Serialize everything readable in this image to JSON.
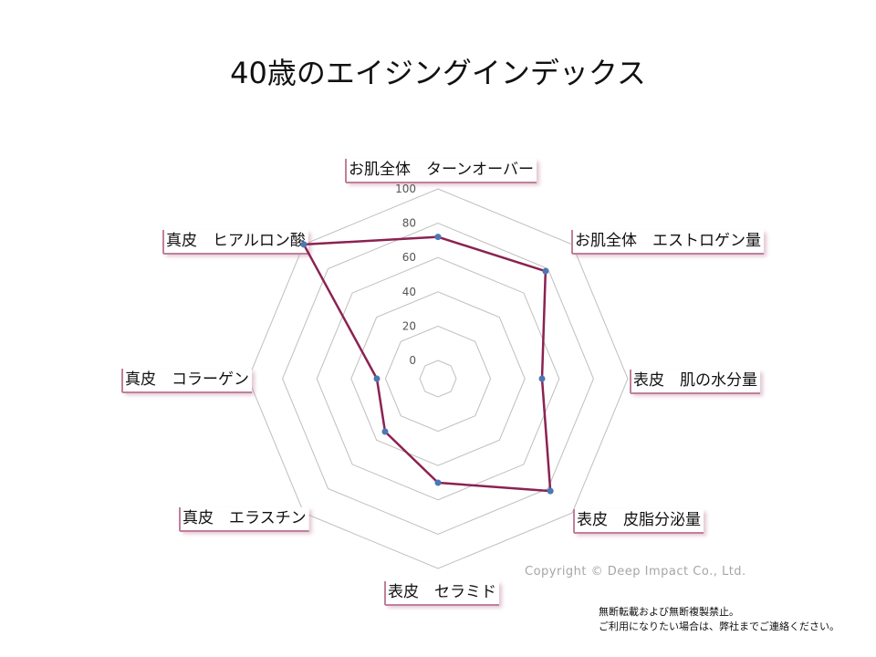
{
  "chart_data": {
    "type": "radar",
    "title": "40歳のエイジングインデックス",
    "categories": [
      "お肌全体　ターンオーバー",
      "お肌全体　エストロゲン量",
      "表皮　肌の水分量",
      "表皮　皮脂分泌量",
      "表皮　セラミド",
      "真皮　エラスチン",
      "真皮　コラーゲン",
      "真皮　ヒアルロン酸"
    ],
    "series": [
      {
        "values": [
          72,
          78,
          50,
          82,
          50,
          33,
          25,
          100
        ],
        "color": "#8b2252"
      }
    ],
    "ticks": [
      "0",
      "20",
      "40",
      "60",
      "80",
      "100"
    ],
    "rlim": [
      0,
      100
    ],
    "grid": true,
    "grid_color": "#bfbfbf",
    "marker_color": "#4a78b5",
    "label_border_color": "#c0809b"
  },
  "footer": {
    "copyright": "Copyright © Deep Impact Co., Ltd.",
    "notice_line1": "無断転載および無断複製禁止。",
    "notice_line2": "ご利用になりたい場合は、弊社までご連絡ください。"
  }
}
